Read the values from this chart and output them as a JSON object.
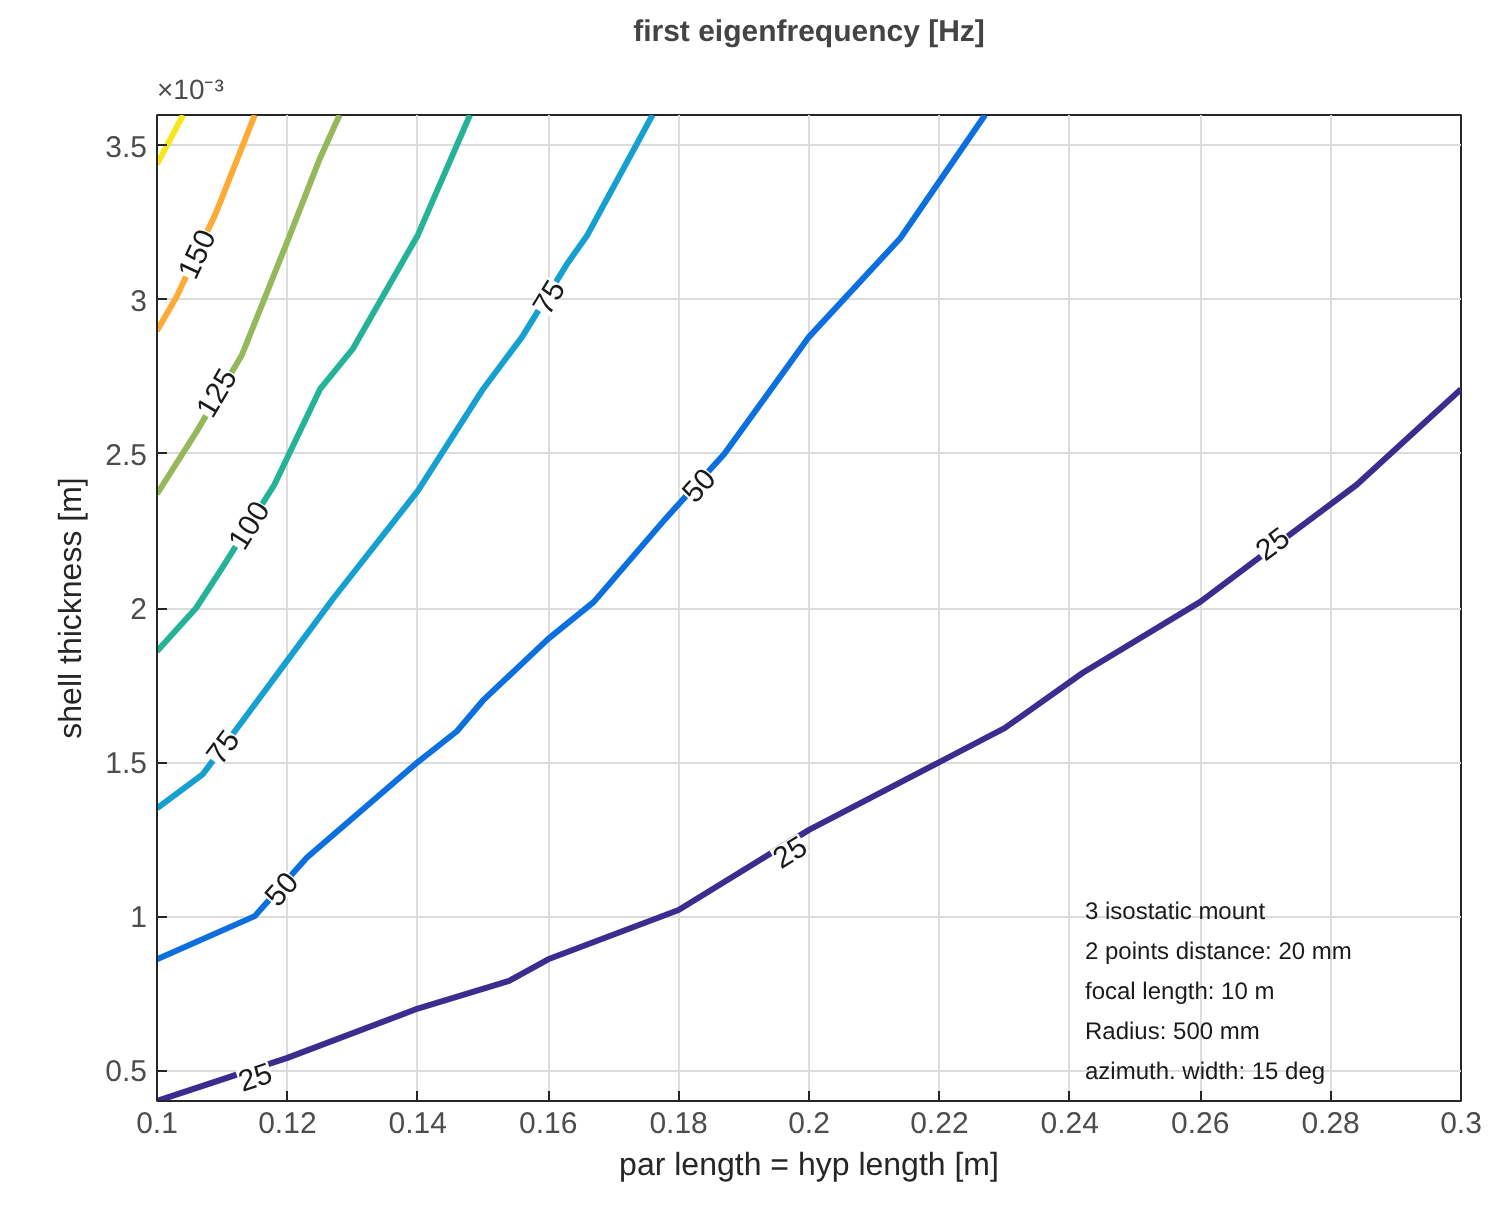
{
  "chart_data": {
    "type": "line",
    "title": "first eigenfrequency [Hz]",
    "xlabel": "par length = hyp length [m]",
    "ylabel": "shell thickness [m]",
    "xlim": [
      0.1,
      0.3
    ],
    "xticks": [
      0.1,
      0.12,
      0.14,
      0.16,
      0.18,
      0.2,
      0.22,
      0.24,
      0.26,
      0.28,
      0.3
    ],
    "ylim": [
      0.4,
      3.6
    ],
    "yticks": [
      0.5,
      1,
      1.5,
      2,
      2.5,
      3,
      3.5
    ],
    "grid": true,
    "line_style": "solid",
    "marker": "none",
    "series": [
      {
        "color": "#3d2b8f",
        "x": [
          0.1,
          0.12,
          0.14,
          0.154,
          0.16,
          0.18,
          0.2,
          0.22,
          0.23,
          0.242,
          0.26,
          0.284,
          0.3
        ],
        "values": [
          0.4,
          0.54,
          0.7,
          0.79,
          0.86,
          1.02,
          1.28,
          1.5,
          1.61,
          1.79,
          2.02,
          2.4,
          2.71
        ]
      },
      {
        "color": "#0b6fe0",
        "x": [
          0.1,
          0.115,
          0.123,
          0.14,
          0.146,
          0.15,
          0.16,
          0.167,
          0.178,
          0.187,
          0.2,
          0.214,
          0.227
        ],
        "values": [
          0.86,
          1.0,
          1.19,
          1.5,
          1.6,
          1.7,
          1.9,
          2.02,
          2.29,
          2.5,
          2.88,
          3.2,
          3.6
        ]
      },
      {
        "color": "#14a0d0",
        "x": [
          0.1,
          0.107,
          0.113,
          0.12,
          0.127,
          0.14,
          0.15,
          0.156,
          0.163,
          0.166,
          0.176
        ],
        "values": [
          1.35,
          1.46,
          1.63,
          1.83,
          2.03,
          2.38,
          2.71,
          2.88,
          3.12,
          3.21,
          3.6
        ]
      },
      {
        "color": "#24b396",
        "x": [
          0.1,
          0.106,
          0.11,
          0.118,
          0.125,
          0.13,
          0.14,
          0.148
        ],
        "values": [
          1.86,
          2.0,
          2.13,
          2.4,
          2.71,
          2.84,
          3.21,
          3.6
        ]
      },
      {
        "color": "#94b85a",
        "x": [
          0.1,
          0.106,
          0.113,
          0.12,
          0.125,
          0.128
        ],
        "values": [
          2.37,
          2.57,
          2.82,
          3.19,
          3.46,
          3.6
        ]
      },
      {
        "color": "#fdaa37",
        "x": [
          0.1,
          0.103,
          0.109,
          0.115
        ],
        "values": [
          2.9,
          3.01,
          3.28,
          3.6
        ]
      },
      {
        "color": "#f5e71c",
        "x": [
          0.1,
          0.104
        ],
        "values": [
          3.44,
          3.6
        ]
      }
    ],
    "annotations": [
      {
        "text": "25",
        "x": 0.115,
        "y": 0.48
      },
      {
        "text": "25",
        "x": 0.197,
        "y": 1.21
      },
      {
        "text": "25",
        "x": 0.271,
        "y": 2.21
      },
      {
        "text": "50",
        "x": 0.119,
        "y": 1.09
      },
      {
        "text": "50",
        "x": 0.183,
        "y": 2.4
      },
      {
        "text": "75",
        "x": 0.11,
        "y": 1.55
      },
      {
        "text": "75",
        "x": 0.16,
        "y": 3.01
      },
      {
        "text": "100",
        "x": 0.114,
        "y": 2.27
      },
      {
        "text": "125",
        "x": 0.109,
        "y": 2.7
      },
      {
        "text": "150",
        "x": 0.106,
        "y": 3.15
      },
      "×10⁻³",
      "3 isostatic mount",
      "2 points distance: 20 mm",
      "focal length: 10 m",
      "Radius: 500 mm",
      "azimuth. width: 15 deg"
    ]
  }
}
